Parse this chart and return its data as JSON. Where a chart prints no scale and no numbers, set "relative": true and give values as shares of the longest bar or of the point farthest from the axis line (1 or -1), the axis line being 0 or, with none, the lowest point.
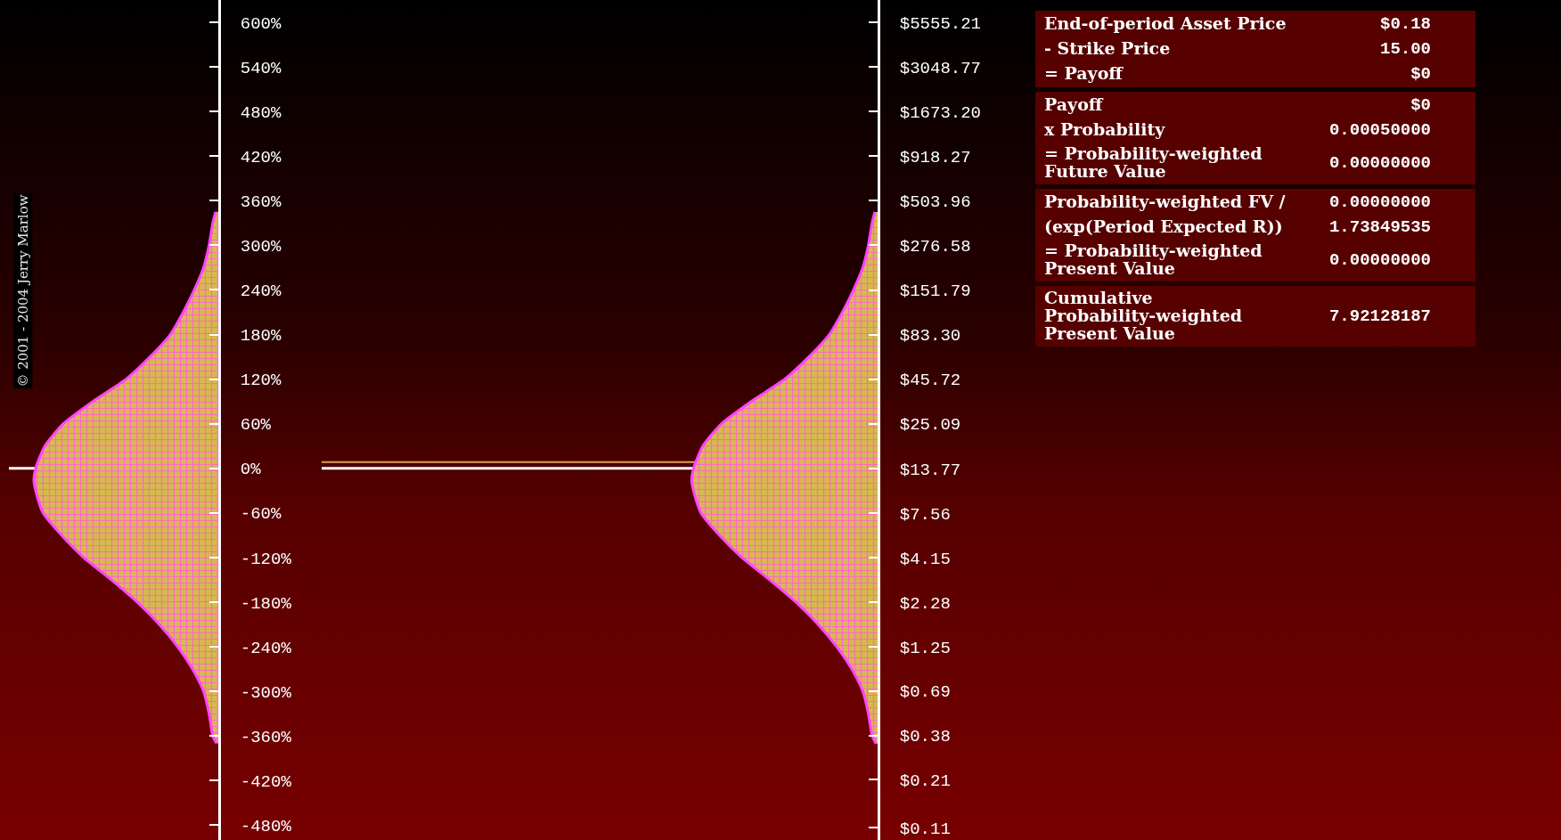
{
  "chart_data": [
    {
      "type": "area",
      "orientation": "horizontal",
      "relative": true,
      "annotations": [
        "© 2001 - 2004 Jerry Marlow"
      ],
      "x": [
        345,
        330,
        300,
        270,
        240,
        210,
        180,
        150,
        120,
        90,
        60,
        30,
        0,
        -16,
        -30,
        -60,
        -90,
        -120,
        -150,
        -180,
        -210,
        -240,
        -270,
        -300,
        -330,
        -360,
        -370
      ],
      "series": [
        {
          "color": "#ff44ff",
          "values": [
            -0.015,
            -0.03,
            -0.05,
            -0.08,
            -0.13,
            -0.19,
            -0.26,
            -0.37,
            -0.5,
            -0.68,
            -0.84,
            -0.94,
            -0.99,
            -1,
            -0.99,
            -0.95,
            -0.85,
            -0.73,
            -0.58,
            -0.44,
            -0.32,
            -0.22,
            -0.14,
            -0.08,
            -0.05,
            -0.03,
            -0.01
          ]
        }
      ],
      "ylim": [
        -500,
        630
      ],
      "yticks": [
        {
          "value": 600,
          "label": "600%"
        },
        {
          "value": 540,
          "label": "540%"
        },
        {
          "value": 480,
          "label": "480%"
        },
        {
          "value": 420,
          "label": "420%"
        },
        {
          "value": 360,
          "label": "360%"
        },
        {
          "value": 300,
          "label": "300%"
        },
        {
          "value": 240,
          "label": "240%"
        },
        {
          "value": 180,
          "label": "180%"
        },
        {
          "value": 120,
          "label": "120%"
        },
        {
          "value": 60,
          "label": "60%"
        },
        {
          "value": 0,
          "label": "0%"
        },
        {
          "value": -60,
          "label": "-60%"
        },
        {
          "value": -120,
          "label": "-120%"
        },
        {
          "value": -180,
          "label": "-180%"
        },
        {
          "value": -240,
          "label": "-240%"
        },
        {
          "value": -300,
          "label": "-300%"
        },
        {
          "value": -360,
          "label": "-360%"
        },
        {
          "value": -420,
          "label": "-420%"
        },
        {
          "value": -480,
          "label": "-480%"
        }
      ],
      "ref_lines": [
        {
          "axis": "y",
          "value": 0,
          "color": "#ffffff"
        }
      ]
    },
    {
      "type": "area",
      "orientation": "horizontal",
      "relative": true,
      "log": "y",
      "x": [
        433.8,
        373.3,
        276.6,
        204.9,
        151.8,
        112.4,
        83.3,
        61.7,
        45.7,
        33.9,
        25.1,
        18.6,
        13.77,
        11.7,
        10.2,
        7.56,
        5.6,
        4.15,
        3.07,
        2.28,
        1.69,
        1.25,
        0.93,
        0.69,
        0.51,
        0.38,
        0.34
      ],
      "series": [
        {
          "color": "#ff44ff",
          "values": [
            -0.015,
            -0.03,
            -0.05,
            -0.08,
            -0.13,
            -0.19,
            -0.26,
            -0.37,
            -0.5,
            -0.68,
            -0.84,
            -0.94,
            -0.99,
            -1,
            -0.99,
            -0.95,
            -0.85,
            -0.73,
            -0.58,
            -0.44,
            -0.32,
            -0.22,
            -0.14,
            -0.08,
            -0.05,
            -0.03,
            -0.01
          ]
        }
      ],
      "ylim": [
        0.093,
        7500
      ],
      "yticks": [
        {
          "value": 5555.21,
          "label": "$5555.21"
        },
        {
          "value": 3048.77,
          "label": "$3048.77"
        },
        {
          "value": 1673.2,
          "label": "$1673.20"
        },
        {
          "value": 918.27,
          "label": "$918.27"
        },
        {
          "value": 503.96,
          "label": "$503.96"
        },
        {
          "value": 276.58,
          "label": "$276.58"
        },
        {
          "value": 151.79,
          "label": "$151.79"
        },
        {
          "value": 83.3,
          "label": "$83.30"
        },
        {
          "value": 45.72,
          "label": "$45.72"
        },
        {
          "value": 25.09,
          "label": "$25.09"
        },
        {
          "value": 13.77,
          "label": "$13.77"
        },
        {
          "value": 7.56,
          "label": "$7.56"
        },
        {
          "value": 4.15,
          "label": "$4.15"
        },
        {
          "value": 2.28,
          "label": "$2.28"
        },
        {
          "value": 1.25,
          "label": "$1.25"
        },
        {
          "value": 0.69,
          "label": "$0.69"
        },
        {
          "value": 0.38,
          "label": "$0.38"
        },
        {
          "value": 0.21,
          "label": "$0.21"
        },
        {
          "value": 0.11,
          "label": "$0.11"
        }
      ],
      "ref_lines": [
        {
          "axis": "y",
          "value": 13.77,
          "color": "#ffffff"
        },
        {
          "axis": "y",
          "value": 15,
          "color": "#e0a050"
        }
      ]
    },
    {
      "type": "other",
      "annotations": [
        "End-of-period Asset Price",
        "$0.18",
        "- Strike Price",
        "15.00",
        "= Payoff",
        "$0"
      ]
    },
    {
      "type": "other",
      "annotations": [
        "Payoff",
        "$0",
        "x Probability",
        "0.00050000",
        "= Probability-weighted\nFuture Value",
        "0.00000000"
      ]
    },
    {
      "type": "other",
      "annotations": [
        "Probability-weighted FV /",
        "0.00000000",
        "(exp(Period Expected R))",
        "1.73849535",
        "= Probability-weighted\nPresent Value",
        "0.00000000"
      ]
    },
    {
      "type": "other",
      "annotations": [
        "Cumulative\nProbability-weighted\nPresent Value",
        "7.92128187"
      ]
    }
  ]
}
